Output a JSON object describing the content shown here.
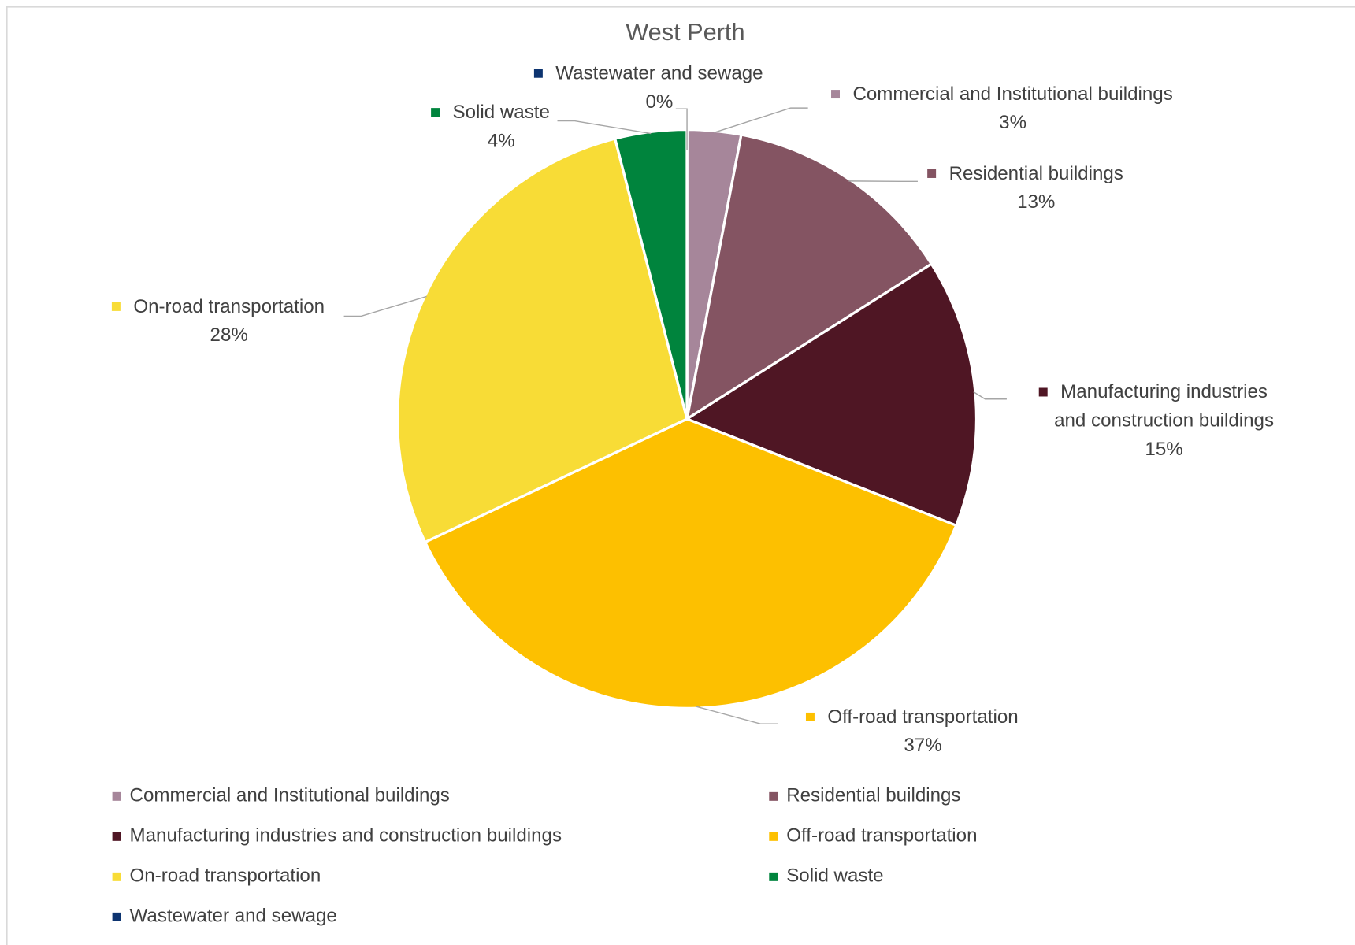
{
  "chart_data": {
    "type": "pie",
    "title": "West Perth",
    "categories": [
      "Commercial and Institutional buildings",
      "Residential buildings",
      "Manufacturing industries and construction buildings",
      "Off-road transportation",
      "On-road transportation",
      "Solid waste",
      "Wastewater and sewage"
    ],
    "values": [
      3,
      13,
      15,
      37,
      28,
      4,
      0
    ],
    "value_labels": [
      "3%",
      "13%",
      "15%",
      "37%",
      "28%",
      "4%",
      "0%"
    ],
    "colors": [
      "#a6869a",
      "#845462",
      "#4f1624",
      "#fdc000",
      "#f8dc36",
      "#00843d",
      "#0d3470"
    ],
    "legend": "bottom"
  }
}
